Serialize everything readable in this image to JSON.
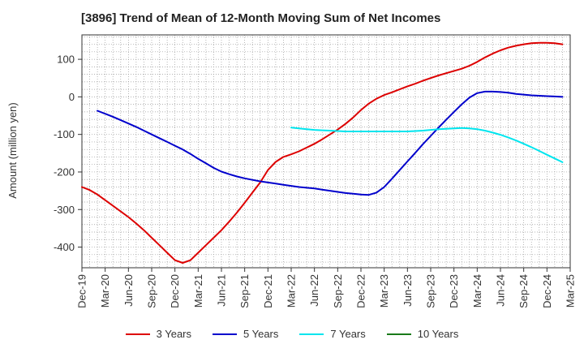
{
  "chart_data": {
    "type": "line",
    "title": "[3896]  Trend of Mean of 12-Month Moving Sum of Net Incomes",
    "ylabel": "Amount (million yen)",
    "xlabel": "",
    "ylim": [
      -455,
      165
    ],
    "yticks": [
      100,
      0,
      -100,
      -200,
      -300,
      -400
    ],
    "x_tick_labels": [
      "Dec-19",
      "Mar-20",
      "Jun-20",
      "Sep-20",
      "Dec-20",
      "Mar-21",
      "Jun-21",
      "Sep-21",
      "Dec-21",
      "Mar-22",
      "Jun-22",
      "Sep-22",
      "Dec-22",
      "Mar-23",
      "Jun-23",
      "Sep-23",
      "Dec-23",
      "Mar-24",
      "Jun-24",
      "Sep-24",
      "Dec-24",
      "Mar-25"
    ],
    "grid": true,
    "legend_position": "bottom",
    "series": [
      {
        "name": "3 Years",
        "color": "#dd0000",
        "points": [
          [
            0,
            -240
          ],
          [
            1,
            -248
          ],
          [
            2,
            -260
          ],
          [
            3,
            -275
          ],
          [
            4,
            -290
          ],
          [
            5,
            -305
          ],
          [
            6,
            -320
          ],
          [
            7,
            -337
          ],
          [
            8,
            -355
          ],
          [
            9,
            -375
          ],
          [
            10,
            -395
          ],
          [
            11,
            -415
          ],
          [
            12,
            -435
          ],
          [
            13,
            -442
          ],
          [
            14,
            -435
          ],
          [
            15,
            -415
          ],
          [
            16,
            -395
          ],
          [
            17,
            -375
          ],
          [
            18,
            -355
          ],
          [
            19,
            -332
          ],
          [
            20,
            -308
          ],
          [
            21,
            -282
          ],
          [
            22,
            -255
          ],
          [
            23,
            -228
          ],
          [
            24,
            -195
          ],
          [
            25,
            -173
          ],
          [
            26,
            -160
          ],
          [
            27,
            -153
          ],
          [
            28,
            -145
          ],
          [
            29,
            -135
          ],
          [
            30,
            -125
          ],
          [
            31,
            -113
          ],
          [
            32,
            -100
          ],
          [
            33,
            -87
          ],
          [
            34,
            -72
          ],
          [
            35,
            -55
          ],
          [
            36,
            -35
          ],
          [
            37,
            -18
          ],
          [
            38,
            -5
          ],
          [
            39,
            5
          ],
          [
            40,
            12
          ],
          [
            41,
            20
          ],
          [
            42,
            28
          ],
          [
            43,
            35
          ],
          [
            44,
            43
          ],
          [
            45,
            50
          ],
          [
            46,
            57
          ],
          [
            47,
            63
          ],
          [
            48,
            69
          ],
          [
            49,
            75
          ],
          [
            50,
            83
          ],
          [
            51,
            93
          ],
          [
            52,
            105
          ],
          [
            53,
            115
          ],
          [
            54,
            124
          ],
          [
            55,
            131
          ],
          [
            56,
            136
          ],
          [
            57,
            140
          ],
          [
            58,
            143
          ],
          [
            59,
            144
          ],
          [
            60,
            144
          ],
          [
            61,
            143
          ],
          [
            62,
            140
          ]
        ]
      },
      {
        "name": "5 Years",
        "color": "#0000cc",
        "points": [
          [
            2,
            -37
          ],
          [
            3,
            -45
          ],
          [
            4,
            -53
          ],
          [
            5,
            -62
          ],
          [
            6,
            -71
          ],
          [
            7,
            -80
          ],
          [
            8,
            -90
          ],
          [
            9,
            -100
          ],
          [
            10,
            -110
          ],
          [
            11,
            -120
          ],
          [
            12,
            -130
          ],
          [
            13,
            -140
          ],
          [
            14,
            -152
          ],
          [
            15,
            -165
          ],
          [
            16,
            -177
          ],
          [
            17,
            -189
          ],
          [
            18,
            -199
          ],
          [
            19,
            -206
          ],
          [
            20,
            -212
          ],
          [
            21,
            -217
          ],
          [
            22,
            -221
          ],
          [
            23,
            -225
          ],
          [
            24,
            -228
          ],
          [
            25,
            -231
          ],
          [
            26,
            -234
          ],
          [
            27,
            -237
          ],
          [
            28,
            -240
          ],
          [
            29,
            -242
          ],
          [
            30,
            -244
          ],
          [
            31,
            -247
          ],
          [
            32,
            -250
          ],
          [
            33,
            -253
          ],
          [
            34,
            -256
          ],
          [
            35,
            -258
          ],
          [
            36,
            -260
          ],
          [
            37,
            -261
          ],
          [
            38,
            -255
          ],
          [
            39,
            -240
          ],
          [
            40,
            -218
          ],
          [
            41,
            -195
          ],
          [
            42,
            -172
          ],
          [
            43,
            -149
          ],
          [
            44,
            -126
          ],
          [
            45,
            -104
          ],
          [
            46,
            -82
          ],
          [
            47,
            -61
          ],
          [
            48,
            -40
          ],
          [
            49,
            -20
          ],
          [
            50,
            -2
          ],
          [
            51,
            10
          ],
          [
            52,
            14
          ],
          [
            53,
            14
          ],
          [
            54,
            13
          ],
          [
            55,
            11
          ],
          [
            56,
            8
          ],
          [
            57,
            6
          ],
          [
            58,
            4
          ],
          [
            59,
            3
          ],
          [
            60,
            2
          ],
          [
            61,
            1
          ],
          [
            62,
            0
          ]
        ]
      },
      {
        "name": "7 Years",
        "color": "#00e5ee",
        "points": [
          [
            27,
            -82
          ],
          [
            28,
            -84
          ],
          [
            29,
            -86
          ],
          [
            30,
            -88
          ],
          [
            31,
            -89
          ],
          [
            32,
            -90
          ],
          [
            33,
            -91
          ],
          [
            34,
            -92
          ],
          [
            35,
            -92
          ],
          [
            36,
            -92
          ],
          [
            37,
            -92
          ],
          [
            38,
            -92
          ],
          [
            39,
            -92
          ],
          [
            40,
            -92
          ],
          [
            41,
            -92
          ],
          [
            42,
            -92
          ],
          [
            43,
            -91
          ],
          [
            44,
            -90
          ],
          [
            45,
            -88
          ],
          [
            46,
            -86
          ],
          [
            47,
            -85
          ],
          [
            48,
            -84
          ],
          [
            49,
            -83
          ],
          [
            50,
            -84
          ],
          [
            51,
            -86
          ],
          [
            52,
            -90
          ],
          [
            53,
            -95
          ],
          [
            54,
            -101
          ],
          [
            55,
            -108
          ],
          [
            56,
            -116
          ],
          [
            57,
            -125
          ],
          [
            58,
            -134
          ],
          [
            59,
            -144
          ],
          [
            60,
            -154
          ],
          [
            61,
            -164
          ],
          [
            62,
            -174
          ]
        ]
      },
      {
        "name": "10 Years",
        "color": "#1a7a1a",
        "points": []
      }
    ]
  }
}
